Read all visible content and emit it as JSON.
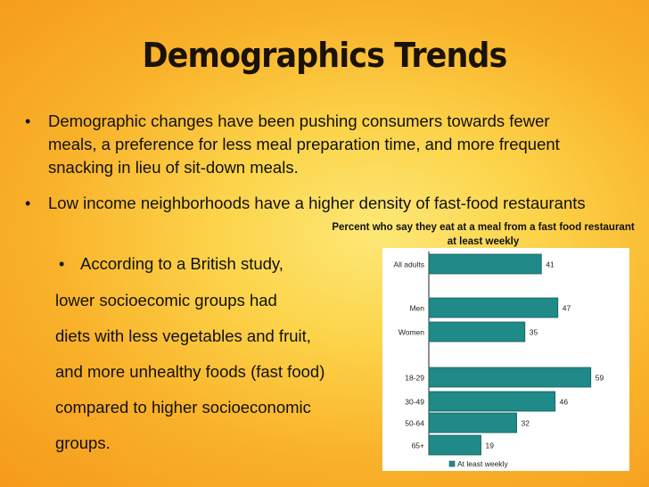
{
  "slide": {
    "title": "Demographics Trends",
    "bullets": [
      "Demographic changes have been pushing consumers towards fewer meals, a preference for less meal preparation time, and more frequent snacking in lieu of sit-down meals.",
      "Low income neighborhoods have a higher density of fast-food restaurants"
    ],
    "sub_bullet_lines": [
      "According to a British study,",
      "lower socioecomic groups had",
      "diets with less vegetables and fruit,",
      "and more unhealthy foods (fast food)",
      "compared to higher socioeconomic",
      "groups."
    ],
    "bullet_glyph": "•"
  },
  "chart_data": {
    "type": "bar",
    "orientation": "horizontal",
    "title": "Percent who say they eat at a meal from a fast food restaurant at least weekly",
    "categories": [
      "All adults",
      "Men",
      "Women",
      "18-29",
      "30-49",
      "50-64",
      "65+"
    ],
    "series": [
      {
        "name": "At least weekly",
        "values": [
          41,
          47,
          35,
          59,
          46,
          32,
          19
        ]
      }
    ],
    "xlim": [
      0,
      60
    ],
    "color": "#1f8a87",
    "legend_position": "bottom",
    "grid": false
  }
}
